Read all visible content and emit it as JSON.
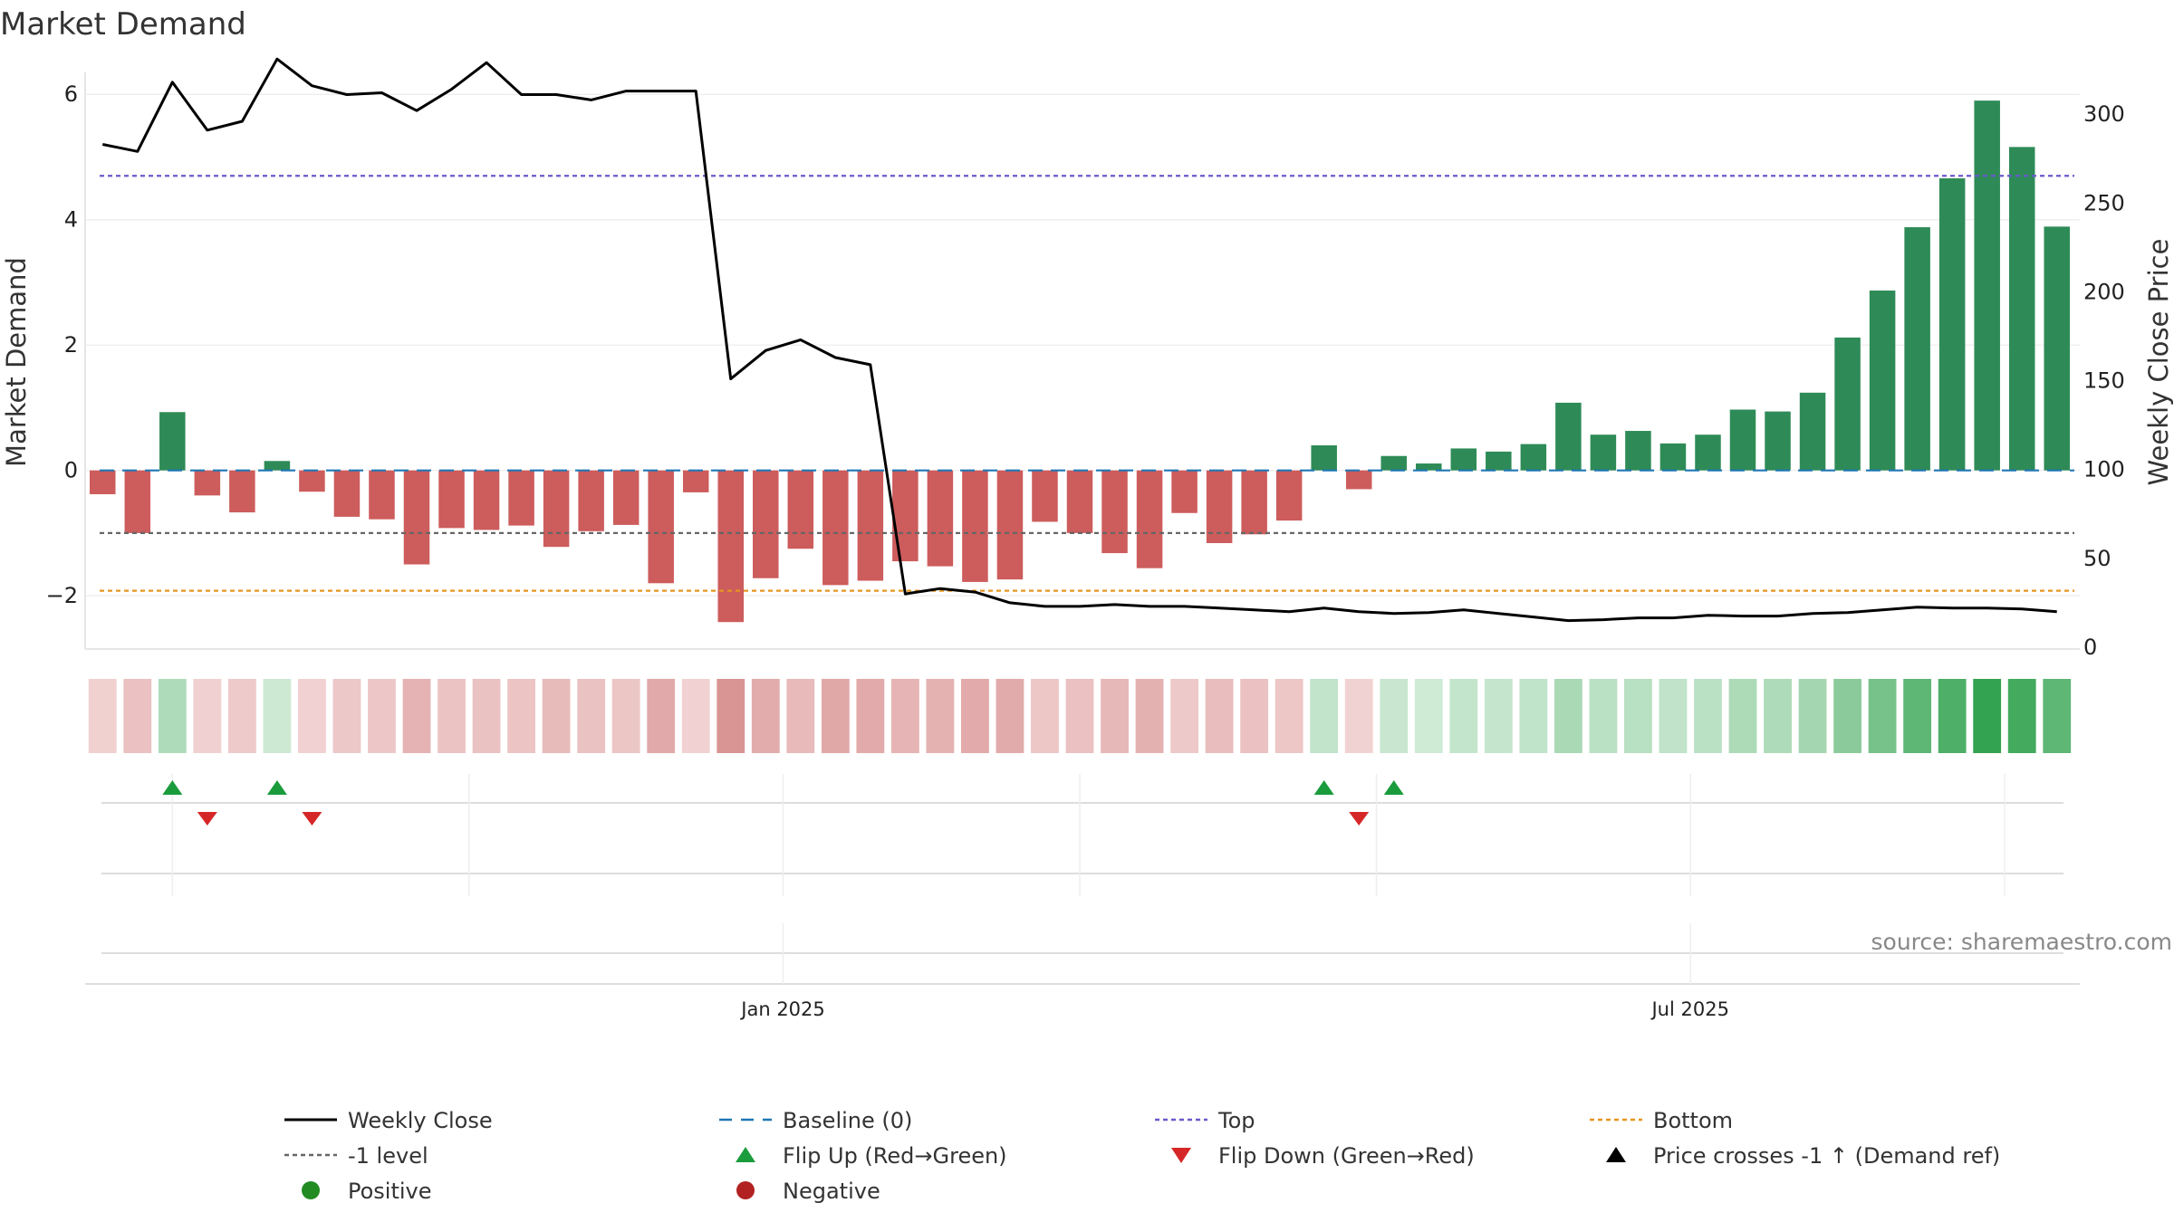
{
  "chart_data": {
    "type": "bar",
    "title": "Market Demand",
    "ylabel": "Market Demand",
    "y2label": "Weekly Close Price",
    "ylim": [
      -2.85,
      6.35
    ],
    "y2lim": [
      0,
      310
    ],
    "yticks": [
      -2,
      0,
      2,
      4,
      6
    ],
    "yticklabels": [
      "−2",
      "0",
      "2",
      "4",
      "6"
    ],
    "y2ticks": [
      0,
      50,
      100,
      150,
      200,
      250,
      300
    ],
    "y2ticklabels": [
      "0",
      "50",
      "100",
      "150",
      "200",
      "250",
      "300"
    ],
    "xticklabels": [
      "Jan 2025",
      "Jul 2025"
    ],
    "xtick_weeks": [
      19.5,
      45.5
    ],
    "reference_lines": {
      "top": 4.7,
      "minus_one": -1.0,
      "bottom": -1.92,
      "baseline": 0
    },
    "demand": [
      -0.38,
      -1.0,
      0.93,
      -0.4,
      -0.67,
      0.15,
      -0.34,
      -0.74,
      -0.78,
      -1.5,
      -0.92,
      -0.95,
      -0.88,
      -1.22,
      -0.97,
      -0.87,
      -1.8,
      -0.35,
      -2.42,
      -1.72,
      -1.25,
      -1.83,
      -1.76,
      -1.45,
      -1.53,
      -1.78,
      -1.74,
      -0.82,
      -1.0,
      -1.32,
      -1.56,
      -0.68,
      -1.16,
      -1.02,
      -0.8,
      0.4,
      -0.3,
      0.23,
      0.11,
      0.35,
      0.3,
      0.42,
      1.08,
      0.57,
      0.63,
      0.43,
      0.57,
      0.97,
      0.94,
      1.24,
      2.12,
      2.87,
      3.88,
      4.66,
      5.9,
      5.16,
      3.89
    ],
    "weekly_close": [
      283,
      279,
      318,
      291,
      296,
      331,
      316,
      311,
      312,
      302,
      314,
      329,
      311,
      311,
      308,
      313,
      313,
      313,
      151,
      167,
      173,
      163,
      159,
      30,
      33,
      31,
      25,
      23,
      23,
      24,
      23,
      23,
      22,
      21,
      20,
      22,
      20,
      19,
      19.5,
      21,
      19,
      17,
      15,
      15.5,
      16.5,
      16.5,
      18,
      17.5,
      17.5,
      19,
      19.5,
      21,
      22.5,
      22,
      22,
      21.5,
      20
    ],
    "flip_up_weeks": [
      2,
      5,
      35,
      37
    ],
    "flip_down_weeks": [
      3,
      6,
      36
    ],
    "colors": {
      "positive": "#2e8b57",
      "negative": "#cd5c5c",
      "weekly_close": "#000000",
      "baseline": "#1f77b4",
      "top": "#6a5acd",
      "bottom": "#e69522",
      "minus_one": "#666666",
      "flip_up": "#1a9c3c",
      "flip_down": "#d62728",
      "positive_marker": "#228b22",
      "negative_marker": "#b22222"
    },
    "legend": [
      {
        "label": "Weekly Close",
        "marker": "solid-line",
        "color": "#000000"
      },
      {
        "label": "Baseline (0)",
        "marker": "dashed-line",
        "color": "#1f77b4"
      },
      {
        "label": "Top",
        "marker": "dotted-line",
        "color": "#6a5acd"
      },
      {
        "label": "Bottom",
        "marker": "dotted-line",
        "color": "#e69522"
      },
      {
        "label": "-1 level",
        "marker": "dotted-line",
        "color": "#666666"
      },
      {
        "label": "Flip Up (Red→Green)",
        "marker": "triangle-up",
        "color": "#1a9c3c"
      },
      {
        "label": "Flip Down (Green→Red)",
        "marker": "triangle-down",
        "color": "#d62728"
      },
      {
        "label": "Price crosses -1 ↑ (Demand ref)",
        "marker": "triangle-up",
        "color": "#000000"
      },
      {
        "label": "Positive",
        "marker": "circle",
        "color": "#228b22"
      },
      {
        "label": "Negative",
        "marker": "circle",
        "color": "#b22222"
      }
    ],
    "legend_position": "bottom",
    "source": "source: sharemaestro.com"
  }
}
